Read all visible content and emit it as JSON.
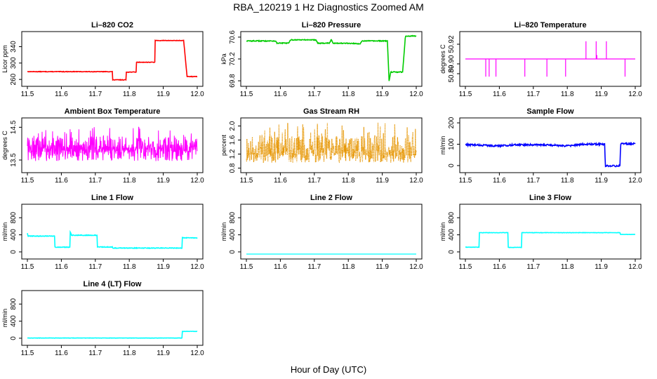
{
  "title": "RBA_120219  1 Hz Diagnostics Zoomed AM",
  "xlabel": "Hour of Day (UTC)",
  "chart_data": [
    {
      "type": "line",
      "name": "li820-co2",
      "title": "Li–820 CO2",
      "ylabel": "Licor ppm",
      "color": "#ff0000",
      "xlim": [
        11.5,
        12.0
      ],
      "ylim": [
        250,
        370
      ],
      "xticks": [
        11.5,
        11.6,
        11.7,
        11.8,
        11.9,
        12.0
      ],
      "xtick_labels": [
        "11.5",
        "11.6",
        "11.7",
        "11.8",
        "11.9",
        "12.0"
      ],
      "yticks": [
        260,
        300,
        340
      ],
      "ytick_labels": [
        "260",
        "300",
        "340"
      ],
      "noise": 0.6,
      "series": [
        {
          "name": "CO2",
          "x": [
            11.5,
            11.75,
            11.751,
            11.79,
            11.791,
            11.82,
            11.821,
            11.875,
            11.876,
            11.96,
            11.97,
            12.0
          ],
          "y": [
            279,
            279,
            259,
            259,
            278,
            278,
            302,
            302,
            355,
            355,
            267,
            267
          ]
        }
      ]
    },
    {
      "type": "line",
      "name": "li820-pressure",
      "title": "Li–820 Pressure",
      "ylabel": "kPa",
      "color": "#00cc00",
      "xlim": [
        11.5,
        12.0
      ],
      "ylim": [
        69.75,
        70.65
      ],
      "xticks": [
        11.5,
        11.6,
        11.7,
        11.8,
        11.9,
        12.0
      ],
      "xtick_labels": [
        "11.5",
        "11.6",
        "11.7",
        "11.8",
        "11.9",
        "12.0"
      ],
      "yticks": [
        69.8,
        70.2,
        70.6
      ],
      "ytick_labels": [
        "69.8",
        "70.2",
        "70.6"
      ],
      "noise": 0.008,
      "series": [
        {
          "name": "Pressure",
          "x": [
            11.5,
            11.585,
            11.59,
            11.625,
            11.63,
            11.705,
            11.71,
            11.745,
            11.75,
            11.755,
            11.76,
            11.835,
            11.84,
            11.915,
            11.92,
            11.925,
            11.96,
            11.968,
            12.0
          ],
          "y": [
            70.53,
            70.53,
            70.49,
            70.49,
            70.55,
            70.55,
            70.49,
            70.49,
            70.56,
            70.49,
            70.49,
            70.48,
            70.53,
            70.53,
            69.8,
            69.96,
            69.96,
            70.62,
            70.62
          ]
        }
      ]
    },
    {
      "type": "line",
      "name": "li820-temperature",
      "title": "Li–820 Temperature",
      "ylabel": "degrees C",
      "color": "#ff00ff",
      "xlim": [
        11.5,
        12.0
      ],
      "ylim": [
        50.88,
        50.93
      ],
      "xticks": [
        11.5,
        11.6,
        11.7,
        11.8,
        11.9,
        12.0
      ],
      "xtick_labels": [
        "11.5",
        "11.6",
        "11.7",
        "11.8",
        "11.9",
        "12.0"
      ],
      "yticks": [
        50.89,
        50.9,
        50.92
      ],
      "ytick_labels": [
        "50.89",
        "50.90",
        "50.92"
      ],
      "baseline": 50.905,
      "spikes": [
        [
          11.56,
          50.887
        ],
        [
          11.57,
          50.887
        ],
        [
          11.59,
          50.887
        ],
        [
          11.675,
          50.887
        ],
        [
          11.74,
          50.887
        ],
        [
          11.795,
          50.887
        ],
        [
          11.855,
          50.923
        ],
        [
          11.885,
          50.923
        ],
        [
          11.887,
          50.909
        ],
        [
          11.915,
          50.923
        ],
        [
          11.97,
          50.887
        ]
      ],
      "series": []
    },
    {
      "type": "line",
      "name": "ambient-box-temperature",
      "title": "Ambient Box Temperature",
      "ylabel": "degrees C",
      "color": "#ff00ff",
      "xlim": [
        11.5,
        12.0
      ],
      "ylim": [
        13.2,
        14.7
      ],
      "xticks": [
        11.5,
        11.6,
        11.7,
        11.8,
        11.9,
        12.0
      ],
      "xtick_labels": [
        "11.5",
        "11.6",
        "11.7",
        "11.8",
        "11.9",
        "12.0"
      ],
      "yticks": [
        13.5,
        14.5
      ],
      "ytick_labels": [
        "13.5",
        "14.5"
      ],
      "noise_band": {
        "center": 13.72,
        "low": 13.3,
        "high": 14.55,
        "points": 600,
        "seed": 7
      },
      "series": []
    },
    {
      "type": "line",
      "name": "gas-stream-rh",
      "title": "Gas Stream RH",
      "ylabel": "percent",
      "color": "#e69500",
      "xlim": [
        11.5,
        12.0
      ],
      "ylim": [
        0.75,
        2.15
      ],
      "xticks": [
        11.5,
        11.6,
        11.7,
        11.8,
        11.9,
        12.0
      ],
      "xtick_labels": [
        "11.5",
        "11.6",
        "11.7",
        "11.8",
        "11.9",
        "12.0"
      ],
      "yticks": [
        0.8,
        1.2,
        1.6,
        2.0
      ],
      "ytick_labels": [
        "0.8",
        "1.2",
        "1.6",
        "2.0"
      ],
      "noise_band": {
        "center": 1.15,
        "low": 0.82,
        "high": 2.1,
        "points": 600,
        "seed": 11,
        "dotted": true
      },
      "series": []
    },
    {
      "type": "line",
      "name": "sample-flow",
      "title": "Sample Flow",
      "ylabel": "ml/min",
      "color": "#0000ff",
      "xlim": [
        11.5,
        12.0
      ],
      "ylim": [
        -20,
        210
      ],
      "xticks": [
        11.5,
        11.6,
        11.7,
        11.8,
        11.9,
        12.0
      ],
      "xtick_labels": [
        "11.5",
        "11.6",
        "11.7",
        "11.8",
        "11.9",
        "12.0"
      ],
      "yticks": [
        0,
        100,
        200
      ],
      "ytick_labels": [
        "0",
        "100",
        "200"
      ],
      "noise": 4,
      "series": [
        {
          "name": "Sample Flow",
          "x": [
            11.5,
            11.6,
            11.65,
            11.75,
            11.8,
            11.85,
            11.91,
            11.912,
            11.955,
            11.957,
            12.0
          ],
          "y": [
            98,
            92,
            98,
            96,
            92,
            100,
            100,
            -2,
            -2,
            102,
            102
          ]
        }
      ]
    },
    {
      "type": "line",
      "name": "line-1-flow",
      "title": "Line 1 Flow",
      "ylabel": "ml/min",
      "color": "#00ffff",
      "xlim": [
        11.5,
        12.0
      ],
      "ylim": [
        -100,
        1050
      ],
      "xticks": [
        11.5,
        11.6,
        11.7,
        11.8,
        11.9,
        12.0
      ],
      "xtick_labels": [
        "11.5",
        "11.6",
        "11.7",
        "11.8",
        "11.9",
        "12.0"
      ],
      "yticks": [
        0,
        400,
        800
      ],
      "ytick_labels": [
        "0",
        "400",
        "800"
      ],
      "noise": 8,
      "series": [
        {
          "name": "Line 1",
          "x": [
            11.5,
            11.502,
            11.58,
            11.581,
            11.625,
            11.626,
            11.63,
            11.705,
            11.706,
            11.75,
            11.751,
            11.955,
            11.956,
            12.0
          ],
          "y": [
            440,
            370,
            370,
            110,
            110,
            470,
            390,
            390,
            115,
            115,
            90,
            90,
            330,
            330
          ]
        }
      ]
    },
    {
      "type": "line",
      "name": "line-2-flow",
      "title": "Line 2 Flow",
      "ylabel": "ml/min",
      "color": "#00ffff",
      "xlim": [
        11.5,
        12.0
      ],
      "ylim": [
        -100,
        1050
      ],
      "xticks": [
        11.5,
        11.6,
        11.7,
        11.8,
        11.9,
        12.0
      ],
      "xtick_labels": [
        "11.5",
        "11.6",
        "11.7",
        "11.8",
        "11.9",
        "12.0"
      ],
      "yticks": [
        0,
        400,
        800
      ],
      "ytick_labels": [
        "0",
        "400",
        "800"
      ],
      "noise": 0,
      "series": [
        {
          "name": "Line 2",
          "x": [
            11.5,
            12.0
          ],
          "y": [
            -50,
            -50
          ]
        }
      ]
    },
    {
      "type": "line",
      "name": "line-3-flow",
      "title": "Line 3 Flow",
      "ylabel": "ml/min",
      "color": "#00ffff",
      "xlim": [
        11.5,
        12.0
      ],
      "ylim": [
        -100,
        1050
      ],
      "xticks": [
        11.5,
        11.6,
        11.7,
        11.8,
        11.9,
        12.0
      ],
      "xtick_labels": [
        "11.5",
        "11.6",
        "11.7",
        "11.8",
        "11.9",
        "12.0"
      ],
      "yticks": [
        0,
        400,
        800
      ],
      "ytick_labels": [
        "0",
        "400",
        "800"
      ],
      "noise": 4,
      "series": [
        {
          "name": "Line 3",
          "x": [
            11.5,
            11.54,
            11.541,
            11.625,
            11.626,
            11.665,
            11.666,
            11.955,
            11.956,
            12.0
          ],
          "y": [
            110,
            110,
            450,
            450,
            105,
            105,
            450,
            450,
            410,
            410
          ]
        }
      ]
    },
    {
      "type": "line",
      "name": "line-4-lt-flow",
      "title": "Line 4 (LT) Flow",
      "ylabel": "ml/min",
      "color": "#00ffff",
      "xlim": [
        11.5,
        12.0
      ],
      "ylim": [
        -100,
        1050
      ],
      "xticks": [
        11.5,
        11.6,
        11.7,
        11.8,
        11.9,
        12.0
      ],
      "xtick_labels": [
        "11.5",
        "11.6",
        "11.7",
        "11.8",
        "11.9",
        "12.0"
      ],
      "yticks": [
        0,
        400,
        800
      ],
      "ytick_labels": [
        "0",
        "400",
        "800"
      ],
      "noise": 3,
      "series": [
        {
          "name": "Line 4",
          "x": [
            11.5,
            11.955,
            11.956,
            12.0
          ],
          "y": [
            5,
            5,
            160,
            160
          ]
        }
      ]
    }
  ]
}
